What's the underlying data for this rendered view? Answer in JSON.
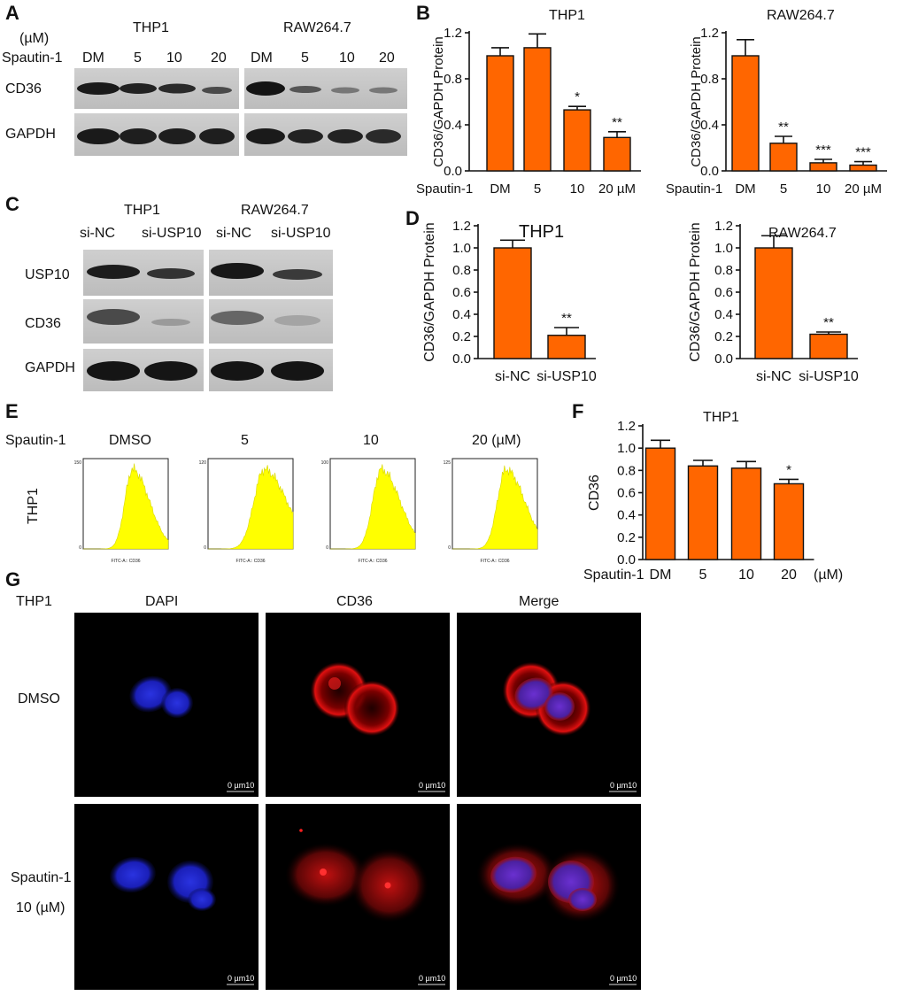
{
  "panels": {
    "a": "A",
    "b": "B",
    "c": "C",
    "d": "D",
    "e": "E",
    "f": "F",
    "g": "G"
  },
  "blot_a": {
    "unit": "(µM)",
    "row_label": "Spautin-1",
    "group1": "THP1",
    "group2": "RAW264.7",
    "lanes1": [
      "DM",
      "5",
      "10",
      "20"
    ],
    "lanes2": [
      "DM",
      "5",
      "10",
      "20"
    ],
    "bands": [
      "CD36",
      "GAPDH"
    ]
  },
  "blot_c": {
    "group1": "THP1",
    "group2": "RAW264.7",
    "lanes1": [
      "si-NC",
      "si-USP10"
    ],
    "lanes2": [
      "si-NC",
      "si-USP10"
    ],
    "bands": [
      "USP10",
      "CD36",
      "GAPDH"
    ]
  },
  "flow_e": {
    "row_label": "Spautin-1",
    "side_label": "THP1",
    "conditions": [
      "DMSO",
      "5",
      "10",
      "20  (µM)"
    ],
    "y_max": [
      "150",
      "120",
      "100",
      "125"
    ],
    "x_axis_label": "FITC-A:: CD36"
  },
  "micro_g": {
    "cell_line": "THP1",
    "columns": [
      "DAPI",
      "CD36",
      "Merge"
    ],
    "row1": "DMSO",
    "row2_line1": "Spautin-1",
    "row2_line2": "10 (µM)",
    "scale_bar": "0  µm10"
  },
  "chart_data": [
    {
      "id": "B-THP1",
      "type": "bar",
      "title": "THP1",
      "ylabel": "CD36/GAPDH Protein",
      "xprefix": "Spautin-1",
      "categories": [
        "DM",
        "5",
        "10",
        "20 µM"
      ],
      "values": [
        1.0,
        1.07,
        0.53,
        0.29
      ],
      "errors": [
        0.07,
        0.12,
        0.03,
        0.05
      ],
      "significance": [
        "",
        "",
        "*",
        "**"
      ],
      "ylim": [
        0,
        1.2
      ],
      "yticks": [
        "0.0",
        "0.4",
        "0.8",
        "1.2"
      ]
    },
    {
      "id": "B-RAW",
      "type": "bar",
      "title": "RAW264.7",
      "ylabel": "CD36/GAPDH Protein",
      "xprefix": "Spautin-1",
      "categories": [
        "DM",
        "5",
        "10",
        "20 µM"
      ],
      "values": [
        1.0,
        0.24,
        0.07,
        0.05
      ],
      "errors": [
        0.14,
        0.06,
        0.03,
        0.03
      ],
      "significance": [
        "",
        "**",
        "***",
        "***"
      ],
      "ylim": [
        0,
        1.2
      ],
      "yticks": [
        "0.0",
        "0.4",
        "0.8",
        "1.2"
      ]
    },
    {
      "id": "D-THP1",
      "type": "bar",
      "title": "THP1",
      "ylabel": "CD36/GAPDH Protein",
      "xprefix": "",
      "categories": [
        "si-NC",
        "si-USP10"
      ],
      "values": [
        1.0,
        0.21
      ],
      "errors": [
        0.07,
        0.07
      ],
      "significance": [
        "",
        "**"
      ],
      "ylim": [
        0,
        1.2
      ],
      "yticks": [
        "0.0",
        "0.2",
        "0.4",
        "0.6",
        "0.8",
        "1.0",
        "1.2"
      ]
    },
    {
      "id": "D-RAW",
      "type": "bar",
      "title": "RAW264.7",
      "ylabel": "CD36/GAPDH Protein",
      "xprefix": "",
      "categories": [
        "si-NC",
        "si-USP10"
      ],
      "values": [
        1.0,
        0.22
      ],
      "errors": [
        0.11,
        0.02
      ],
      "significance": [
        "",
        "**"
      ],
      "ylim": [
        0,
        1.2
      ],
      "yticks": [
        "0.0",
        "0.2",
        "0.4",
        "0.6",
        "0.8",
        "1.0",
        "1.2"
      ]
    },
    {
      "id": "F-THP1",
      "type": "bar",
      "title": "THP1",
      "ylabel": "CD36",
      "xprefix": "Spautin-1",
      "xsuffix": "(µM)",
      "categories": [
        "DM",
        "5",
        "10",
        "20"
      ],
      "values": [
        1.0,
        0.84,
        0.82,
        0.68
      ],
      "errors": [
        0.07,
        0.05,
        0.06,
        0.04
      ],
      "significance": [
        "",
        "",
        "",
        "*"
      ],
      "ylim": [
        0,
        1.2
      ],
      "yticks": [
        "0.0",
        "0.2",
        "0.4",
        "0.6",
        "0.8",
        "1.0",
        "1.2"
      ]
    }
  ]
}
